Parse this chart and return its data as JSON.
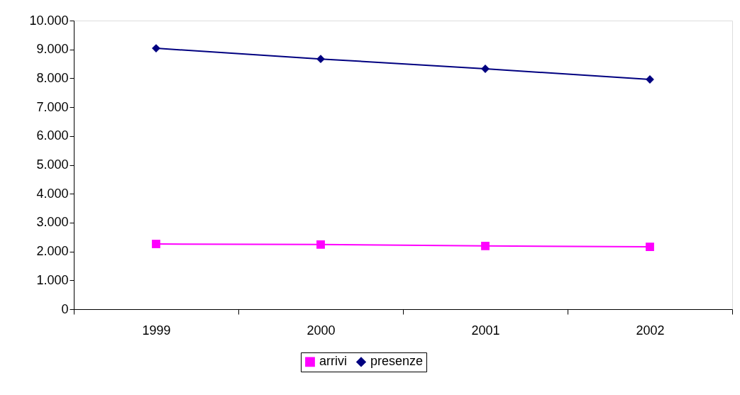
{
  "chart_data": {
    "type": "line",
    "categories": [
      "1999",
      "2000",
      "2001",
      "2002"
    ],
    "series": [
      {
        "name": "arrivi",
        "color": "#ff00ff",
        "marker": "square",
        "values": [
          2260,
          2240,
          2190,
          2160
        ]
      },
      {
        "name": "presenze",
        "color": "#000080",
        "marker": "diamond",
        "values": [
          9040,
          8670,
          8330,
          7960
        ]
      }
    ],
    "ylim": [
      0,
      10000
    ],
    "yticks": [
      0,
      {
        "value": 1000,
        "label": "1.000"
      },
      {
        "value": 2000,
        "label": "2.000"
      },
      {
        "value": 3000,
        "label": "3.000"
      },
      {
        "value": 4000,
        "label": "4.000"
      },
      {
        "value": 5000,
        "label": "5.000"
      },
      {
        "value": 6000,
        "label": "6.000"
      },
      {
        "value": 7000,
        "label": "7.000"
      },
      {
        "value": 8000,
        "label": "8.000"
      },
      {
        "value": 9000,
        "label": "9.000"
      },
      {
        "value": 10000,
        "label": "10.000"
      }
    ],
    "grid": false,
    "legend": "bottom",
    "line_style": "solid"
  }
}
